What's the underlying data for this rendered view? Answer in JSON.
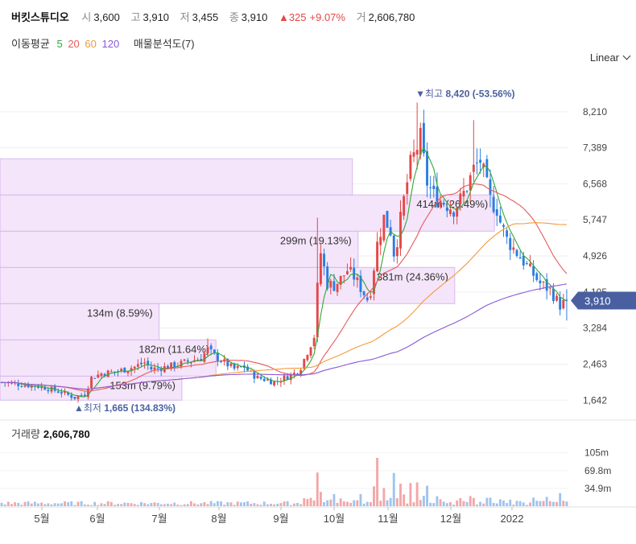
{
  "header": {
    "name": "버킷스튜디오",
    "open_label": "시",
    "open": "3,600",
    "high_label": "고",
    "high": "3,910",
    "low_label": "저",
    "low": "3,455",
    "close_label": "종",
    "close": "3,910",
    "change": "▲325",
    "change_pct": "+9.07%",
    "volume_label": "거",
    "volume": "2,606,780"
  },
  "ma_legend": {
    "title": "이동평균",
    "periods": [
      {
        "label": "5",
        "color": "#2eaa3a"
      },
      {
        "label": "20",
        "color": "#e85a5a"
      },
      {
        "label": "60",
        "color": "#f39a3a"
      },
      {
        "label": "120",
        "color": "#8a5ad8"
      }
    ],
    "profile_label": "매물분석도(7)"
  },
  "scale_select": "Linear",
  "volume_panel": {
    "label": "거래량",
    "value": "2,606,780"
  },
  "colors": {
    "up": "#e34848",
    "down": "#2a7de1",
    "profile": "#f4e5fa",
    "profile_border": "#d9b8ec",
    "price_tag": "#4a5fa0"
  },
  "chart_data": {
    "type": "candlestick",
    "y_ticks": [
      8210,
      7389,
      6568,
      5747,
      4926,
      4105,
      3284,
      2463,
      1642
    ],
    "y_tick_labels": [
      "8,210",
      "7,389",
      "6,568",
      "5,747",
      "4,926",
      "4,105",
      "3,284",
      "2,463",
      "1,642"
    ],
    "ylim": [
      1500,
      9050
    ],
    "x_tick_labels": [
      "5월",
      "6월",
      "7월",
      "8월",
      "9월",
      "10월",
      "11월",
      "12월",
      "2022"
    ],
    "current_price": "3,910",
    "current_value": 3910,
    "high_annotation": {
      "text": "▼최고",
      "value_text": "8,420 (-53.56%)",
      "value": 8420
    },
    "low_annotation": {
      "text": "▲최저",
      "value_text": "1,665 (134.83%)",
      "value": 1665
    },
    "volume_ticks": [
      "105m",
      "69.8m",
      "34.9m"
    ],
    "volume_tick_values": [
      105,
      69.8,
      34.9
    ],
    "volume_max": 128,
    "volume_profile": [
      {
        "low": 1642,
        "high": 2190,
        "label": "153m (9.79%)"
      },
      {
        "low": 2190,
        "high": 3015,
        "label": "182m (11.64%)"
      },
      {
        "low": 3015,
        "high": 3840,
        "label": "134m (8.59%)"
      },
      {
        "low": 3840,
        "high": 4665,
        "label": "381m (24.36%)"
      },
      {
        "low": 4665,
        "high": 5490,
        "label": "299m (19.13%)"
      },
      {
        "low": 5490,
        "high": 6315,
        "label": "414m (26.49%)"
      },
      {
        "low": 6315,
        "high": 7140,
        "label": ""
      }
    ],
    "profile_length": [
      0.32,
      0.38,
      0.28,
      0.8,
      0.63,
      0.87,
      0.62
    ],
    "price_path": [
      [
        0,
        2050
      ],
      [
        6,
        2000
      ],
      [
        12,
        1950
      ],
      [
        18,
        1820
      ],
      [
        22,
        1700
      ],
      [
        25,
        1780
      ],
      [
        27,
        2150
      ],
      [
        30,
        2250
      ],
      [
        35,
        2300
      ],
      [
        40,
        2400
      ],
      [
        43,
        2500
      ],
      [
        45,
        2350
      ],
      [
        50,
        2400
      ],
      [
        55,
        2500
      ],
      [
        60,
        2600
      ],
      [
        62,
        2800
      ],
      [
        64,
        2650
      ],
      [
        67,
        2500
      ],
      [
        70,
        2350
      ],
      [
        73,
        2400
      ],
      [
        75,
        2250
      ],
      [
        77,
        2150
      ],
      [
        80,
        2100
      ],
      [
        82,
        2050
      ],
      [
        85,
        2150
      ],
      [
        88,
        2250
      ],
      [
        90,
        2400
      ],
      [
        92,
        2750
      ],
      [
        94,
        3100
      ],
      [
        95,
        4200
      ],
      [
        96,
        5000
      ],
      [
        98,
        4300
      ],
      [
        100,
        4250
      ],
      [
        102,
        4400
      ],
      [
        104,
        4600
      ],
      [
        106,
        4450
      ],
      [
        108,
        4200
      ],
      [
        110,
        3950
      ],
      [
        111,
        4150
      ],
      [
        113,
        5200
      ],
      [
        115,
        5800
      ],
      [
        117,
        5500
      ],
      [
        118,
        5000
      ],
      [
        119,
        5300
      ],
      [
        121,
        6200
      ],
      [
        123,
        7000
      ],
      [
        125,
        7400
      ],
      [
        126,
        7600
      ],
      [
        127,
        7100
      ],
      [
        128,
        6600
      ],
      [
        130,
        6300
      ],
      [
        132,
        6200
      ],
      [
        134,
        6100
      ],
      [
        136,
        6000
      ],
      [
        138,
        6200
      ],
      [
        140,
        6500
      ],
      [
        142,
        6900
      ],
      [
        144,
        7100
      ],
      [
        145,
        6800
      ],
      [
        147,
        6200
      ],
      [
        149,
        6000
      ],
      [
        150,
        5700
      ],
      [
        152,
        5300
      ],
      [
        154,
        5100
      ],
      [
        157,
        4800
      ],
      [
        160,
        4500
      ],
      [
        162,
        4300
      ],
      [
        165,
        4150
      ],
      [
        168,
        3800
      ],
      [
        170,
        3910
      ]
    ],
    "spikes": [
      {
        "index": 125,
        "value": 8420
      },
      {
        "index": 142,
        "value": 8020
      },
      {
        "index": 95,
        "value": 5800
      },
      {
        "index": 62,
        "value": 3050
      }
    ],
    "ma_periods": [
      5,
      20,
      60,
      120
    ]
  }
}
